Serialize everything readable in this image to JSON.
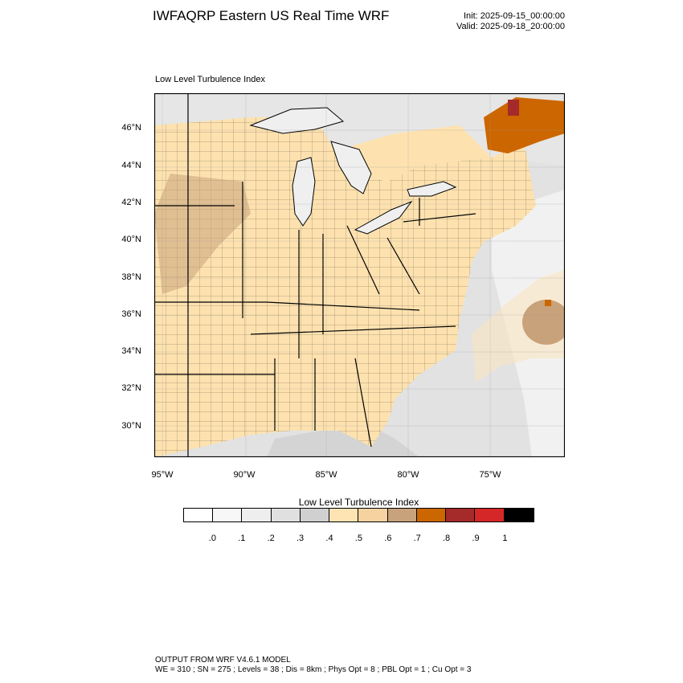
{
  "header": {
    "title": "IWFAQRP Eastern US Real Time WRF",
    "init": "Init: 2025-09-15_00:00:00",
    "valid": "Valid: 2025-09-18_20:00:00"
  },
  "map": {
    "subtitle": "Low Level Turbulence Index",
    "lat_labels": [
      "46°N",
      "44°N",
      "42°N",
      "40°N",
      "38°N",
      "36°N",
      "34°N",
      "32°N",
      "30°N"
    ],
    "lon_labels": [
      "95°W",
      "90°W",
      "85°W",
      "80°W",
      "75°W"
    ],
    "colors": {
      "land": "#fde2b0",
      "land_mid": "#f3d2a0",
      "high": "#c8a27a",
      "ocean_light": "#f2f2f2",
      "ocean_mid": "#e0e0e0",
      "ocean_dark": "#d0d0d0",
      "lake": "#efefef",
      "orange": "#cc6600",
      "red": "#a52a2a"
    }
  },
  "colorbar": {
    "title": "Low Level Turbulence Index",
    "colors": [
      "#ffffff",
      "#f7f7f7",
      "#eeeeee",
      "#e0e0e0",
      "#d0d0d0",
      "#fee3b3",
      "#f5d2a0",
      "#c8a27a",
      "#cc6600",
      "#a52a2a",
      "#d62728",
      "#000000"
    ],
    "labels": [
      ".0",
      ".1",
      ".2",
      ".3",
      ".4",
      ".5",
      ".6",
      ".7",
      ".8",
      ".9",
      "1"
    ]
  },
  "footer": {
    "line1": "OUTPUT FROM WRF V4.6.1 MODEL",
    "line2": "WE = 310 ; SN = 275 ; Levels = 38 ; Dis = 8km ; Phys Opt = 8 ; PBL Opt = 1 ; Cu Opt = 3"
  }
}
